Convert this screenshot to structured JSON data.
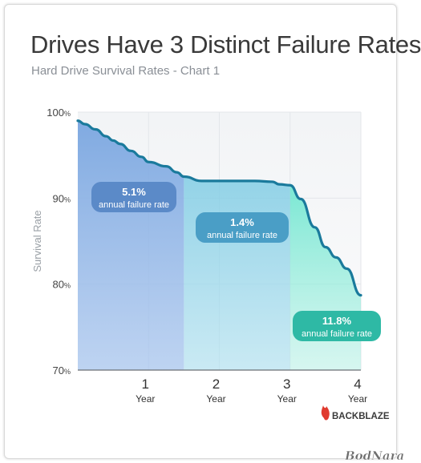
{
  "chart_data": {
    "type": "area",
    "title": "Drives Have 3 Distinct Failure Rates",
    "subtitle": "Hard Drive Survival Rates - Chart 1",
    "ylabel": "Survival Rate",
    "xlabel": "",
    "ylim": [
      70,
      100
    ],
    "xlim": [
      0,
      4
    ],
    "y_ticks": [
      {
        "value": 100,
        "num": "100",
        "unit": "%"
      },
      {
        "value": 90,
        "num": "90",
        "unit": "%"
      },
      {
        "value": 80,
        "num": "80",
        "unit": "%"
      },
      {
        "value": 70,
        "num": "70",
        "unit": "%"
      }
    ],
    "x_ticks": [
      {
        "value": 1,
        "num": "1",
        "sub": "Year"
      },
      {
        "value": 2,
        "num": "2",
        "sub": "Year"
      },
      {
        "value": 3,
        "num": "3",
        "sub": "Year"
      },
      {
        "value": 4,
        "num": "4",
        "sub": "Year"
      }
    ],
    "series": [
      {
        "x": [
          0,
          0.1,
          0.25,
          0.4,
          0.5,
          0.6,
          0.75,
          0.9,
          1.0,
          1.25,
          1.4,
          1.5,
          1.75,
          2.0,
          2.25,
          2.5,
          2.75,
          2.85,
          3.0,
          3.15,
          3.35,
          3.5,
          3.65,
          3.8,
          4.0
        ],
        "values": [
          99.0,
          98.6,
          98.0,
          97.2,
          96.7,
          96.3,
          95.5,
          94.8,
          94.2,
          93.7,
          93.0,
          92.5,
          92.0,
          92.0,
          92.0,
          92.0,
          91.9,
          91.6,
          91.5,
          89.9,
          86.6,
          84.3,
          83.1,
          81.8,
          78.7
        ]
      }
    ],
    "phases": [
      {
        "x0": 0,
        "x1": 1.5,
        "color": "#7aa6e0",
        "rate": "5.1%",
        "label": "annual failure rate",
        "badge_color": "#5b8ac8"
      },
      {
        "x0": 1.5,
        "x1": 3.0,
        "color": "#6fc0dc",
        "rate": "1.4%",
        "label": "annual failure rate",
        "badge_color": "#4a9ec6"
      },
      {
        "x0": 3.0,
        "x1": 4.0,
        "color": "#5ce0c6",
        "rate": "11.8%",
        "label": "annual failure rate",
        "badge_color": "#2eb9a5"
      }
    ],
    "line_color": "#1a7a9c",
    "grid": true
  },
  "brand": {
    "name": "BACKBLAZE",
    "logo_color": "#e03a2f"
  },
  "watermark": "BodNara"
}
